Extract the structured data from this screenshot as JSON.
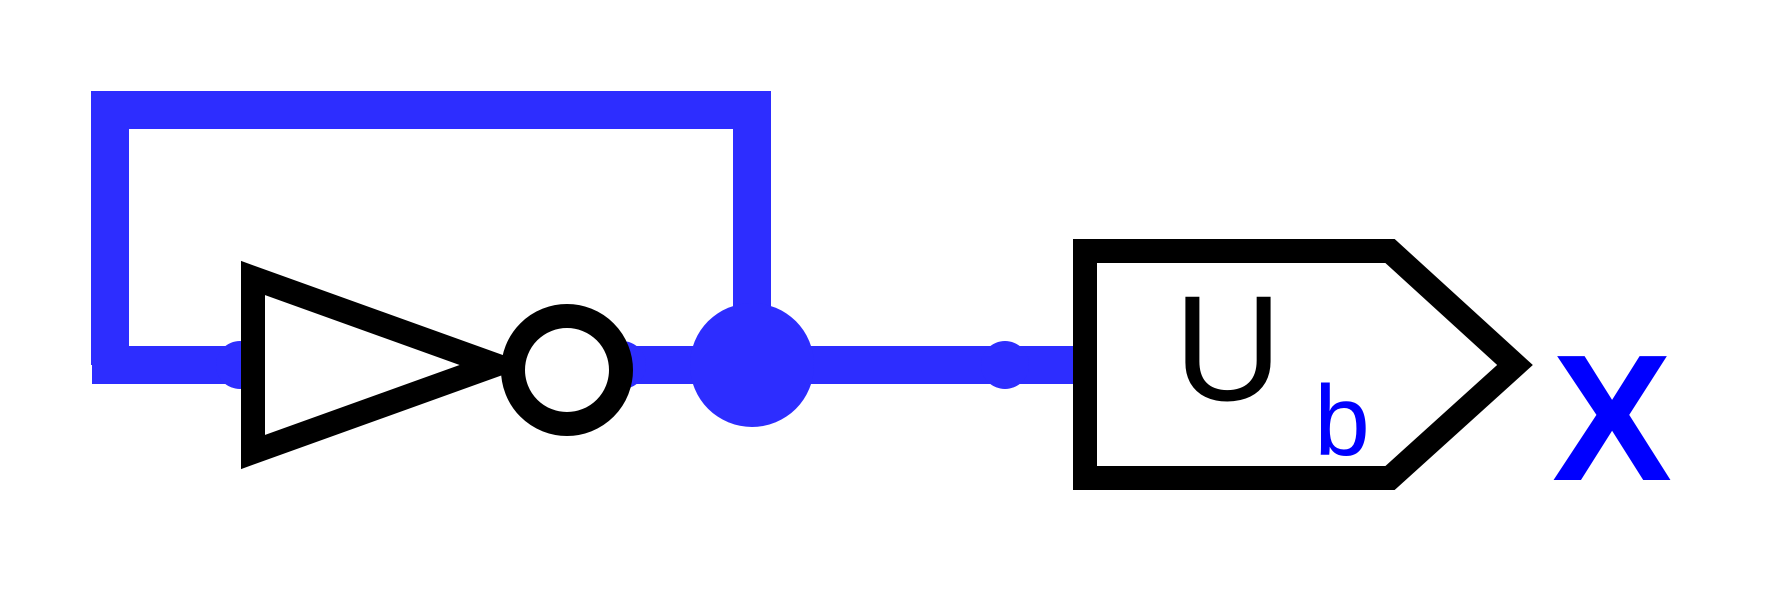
{
  "colors": {
    "wire": "#2d2dff",
    "gate_stroke": "#000000",
    "label_accent": "#0000ff"
  },
  "components": {
    "inverter": {
      "icon": "not-gate-icon"
    },
    "output_pin": {
      "icon": "output-pin-icon",
      "label_main": "U",
      "label_sub": "b"
    }
  },
  "output_label": "X"
}
